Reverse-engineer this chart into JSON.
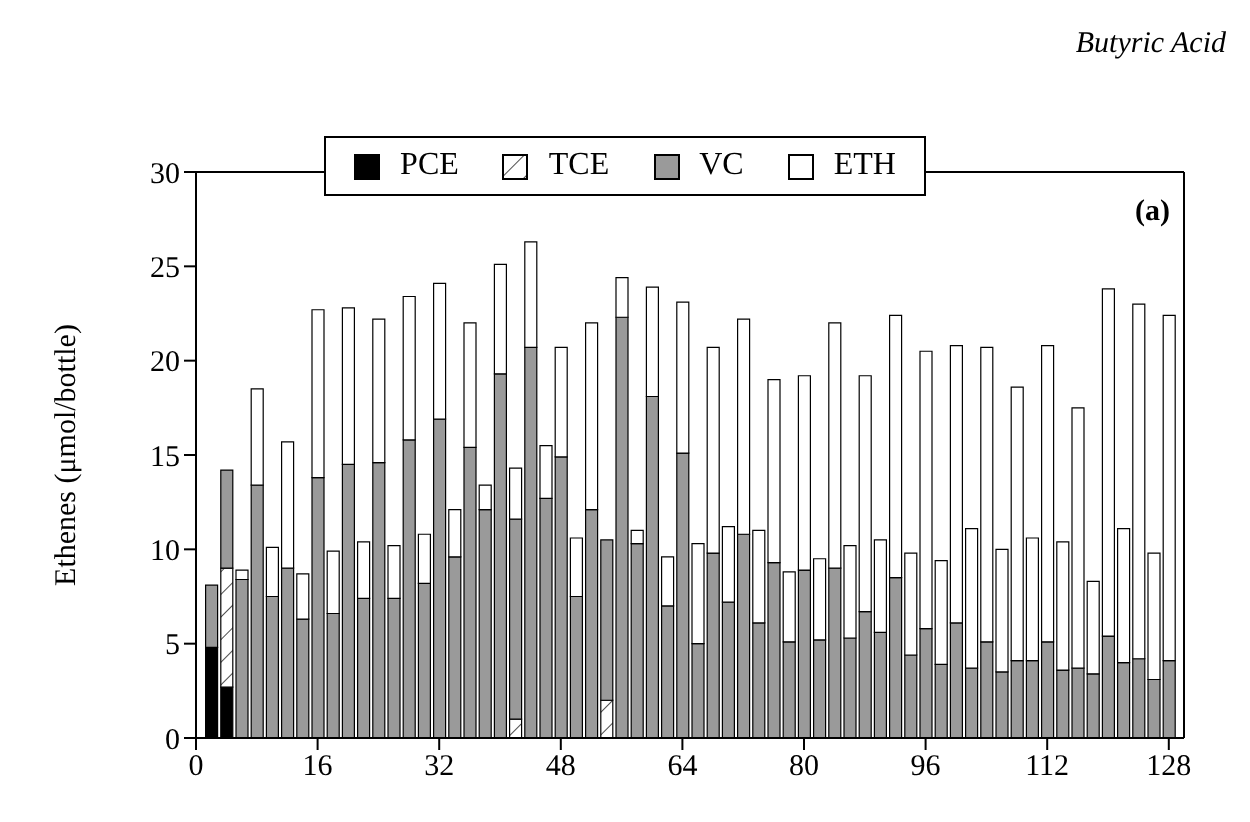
{
  "chart_data": {
    "type": "bar",
    "title": "Butyric Acid",
    "ylabel": "Ethenes (μmol/bottle)",
    "annotations": [
      "(a)"
    ],
    "stacked": true,
    "legend": "top",
    "x": [
      2,
      4,
      6,
      8,
      10,
      12,
      14,
      16,
      18,
      20,
      22,
      24,
      26,
      28,
      30,
      32,
      34,
      36,
      38,
      40,
      42,
      44,
      46,
      48,
      50,
      52,
      54,
      56,
      58,
      60,
      62,
      64,
      66,
      68,
      70,
      72,
      74,
      76,
      78,
      80,
      82,
      84,
      86,
      88,
      90,
      92,
      94,
      96,
      98,
      100,
      102,
      104,
      106,
      108,
      110,
      112,
      114,
      116,
      118,
      120,
      122,
      124,
      126,
      128
    ],
    "xlim": [
      0,
      130
    ],
    "xticks": [
      0,
      16,
      32,
      48,
      64,
      80,
      96,
      112,
      128
    ],
    "ylim": [
      0,
      30
    ],
    "yticks": [
      0,
      5,
      10,
      15,
      20,
      25,
      30
    ],
    "series": [
      {
        "name": "PCE",
        "color": "#000000",
        "values": [
          4.8,
          2.7,
          null,
          null,
          null,
          null,
          null,
          null,
          null,
          null,
          null,
          null,
          null,
          null,
          null,
          null,
          null,
          null,
          null,
          null,
          null,
          null,
          null,
          null,
          null,
          null,
          null,
          null,
          null,
          null,
          null,
          null,
          null,
          null,
          null,
          null,
          null,
          null,
          null,
          null,
          null,
          null,
          null,
          null,
          null,
          null,
          null,
          null,
          null,
          null,
          null,
          null,
          null,
          null,
          null,
          null,
          null,
          null,
          null,
          null,
          null,
          null,
          null,
          null
        ]
      },
      {
        "name": "TCE",
        "color": "#ffffff",
        "values": [
          null,
          6.3,
          null,
          null,
          null,
          null,
          null,
          null,
          null,
          null,
          null,
          null,
          null,
          null,
          null,
          null,
          null,
          null,
          null,
          null,
          1.0,
          null,
          null,
          null,
          null,
          null,
          2.0,
          null,
          null,
          null,
          null,
          null,
          null,
          null,
          null,
          null,
          null,
          null,
          null,
          null,
          null,
          null,
          null,
          null,
          null,
          null,
          null,
          null,
          null,
          null,
          null,
          null,
          null,
          null,
          null,
          null,
          null,
          null,
          null,
          null,
          null,
          null,
          null,
          null
        ]
      },
      {
        "name": "VC",
        "color": "#9a9a9a",
        "values": [
          3.3,
          5.2,
          8.4,
          13.4,
          7.5,
          9.0,
          6.3,
          13.8,
          6.6,
          14.5,
          7.4,
          14.6,
          7.4,
          15.8,
          8.2,
          16.9,
          9.6,
          15.4,
          12.1,
          19.3,
          10.6,
          20.7,
          12.7,
          14.9,
          7.5,
          12.1,
          8.5,
          22.3,
          10.3,
          18.1,
          7.0,
          15.1,
          5.0,
          9.8,
          7.2,
          10.8,
          6.1,
          9.3,
          5.1,
          8.9,
          5.2,
          9.0,
          5.3,
          6.7,
          5.6,
          8.5,
          4.4,
          5.8,
          3.9,
          6.1,
          3.7,
          5.1,
          3.5,
          4.1,
          4.1,
          5.1,
          3.6,
          3.7,
          3.4,
          5.4,
          4.0,
          4.2,
          3.1,
          4.1
        ]
      },
      {
        "name": "ETH",
        "color": "#ffffff",
        "values": [
          null,
          null,
          0.5,
          5.1,
          2.6,
          6.7,
          2.4,
          8.9,
          3.3,
          8.3,
          3.0,
          7.6,
          2.8,
          7.6,
          2.6,
          7.2,
          2.5,
          6.6,
          1.3,
          5.8,
          2.7,
          5.6,
          2.8,
          5.8,
          3.1,
          9.9,
          null,
          2.1,
          0.7,
          5.8,
          2.6,
          8.0,
          5.3,
          10.9,
          4.0,
          11.4,
          4.9,
          9.7,
          3.7,
          10.3,
          4.3,
          13.0,
          4.9,
          12.5,
          4.9,
          13.9,
          5.4,
          14.7,
          5.5,
          14.7,
          7.4,
          15.6,
          6.5,
          14.5,
          6.5,
          15.7,
          6.8,
          13.8,
          4.9,
          18.4,
          7.1,
          18.8,
          6.7,
          18.3
        ]
      }
    ]
  }
}
